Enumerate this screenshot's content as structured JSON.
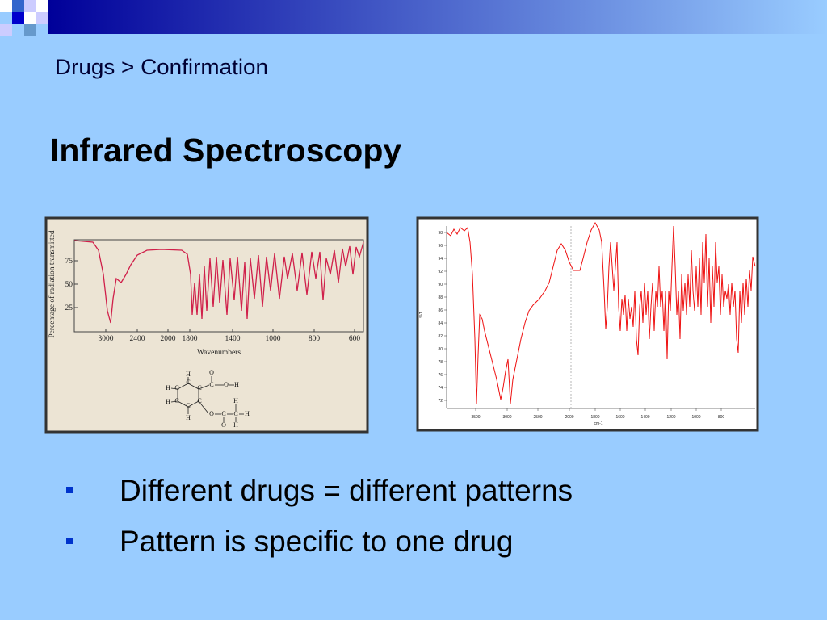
{
  "header": {
    "breadcrumb": "Drugs > Confirmation",
    "title": "Infrared Spectroscopy"
  },
  "figures": [
    {
      "y_label": "Percentage of radiation transmitted",
      "yticks": [
        75,
        50,
        25
      ],
      "xticks": [
        3000,
        2400,
        2000,
        1800,
        1400,
        1000,
        800,
        600
      ],
      "x_label": "Wavenumbers",
      "structure_labels": [
        "H",
        "C",
        "C",
        "C",
        "C",
        "C",
        "C",
        "H",
        "H",
        "H",
        "C",
        "O",
        "O",
        "H",
        "O",
        "C",
        "C",
        "H",
        "O",
        "H",
        "H"
      ]
    },
    {
      "y_label": "%T",
      "yticks": [
        98,
        96,
        94,
        92,
        90,
        88,
        86,
        84,
        82,
        80,
        78,
        76,
        74,
        72
      ],
      "xticks": [
        3500,
        3000,
        2500,
        2000,
        1800,
        1600,
        1400,
        1200,
        1000,
        800
      ],
      "x_label": "cm-1"
    }
  ],
  "bullets": [
    "Different drugs = different patterns",
    "Pattern is specific to one drug"
  ]
}
